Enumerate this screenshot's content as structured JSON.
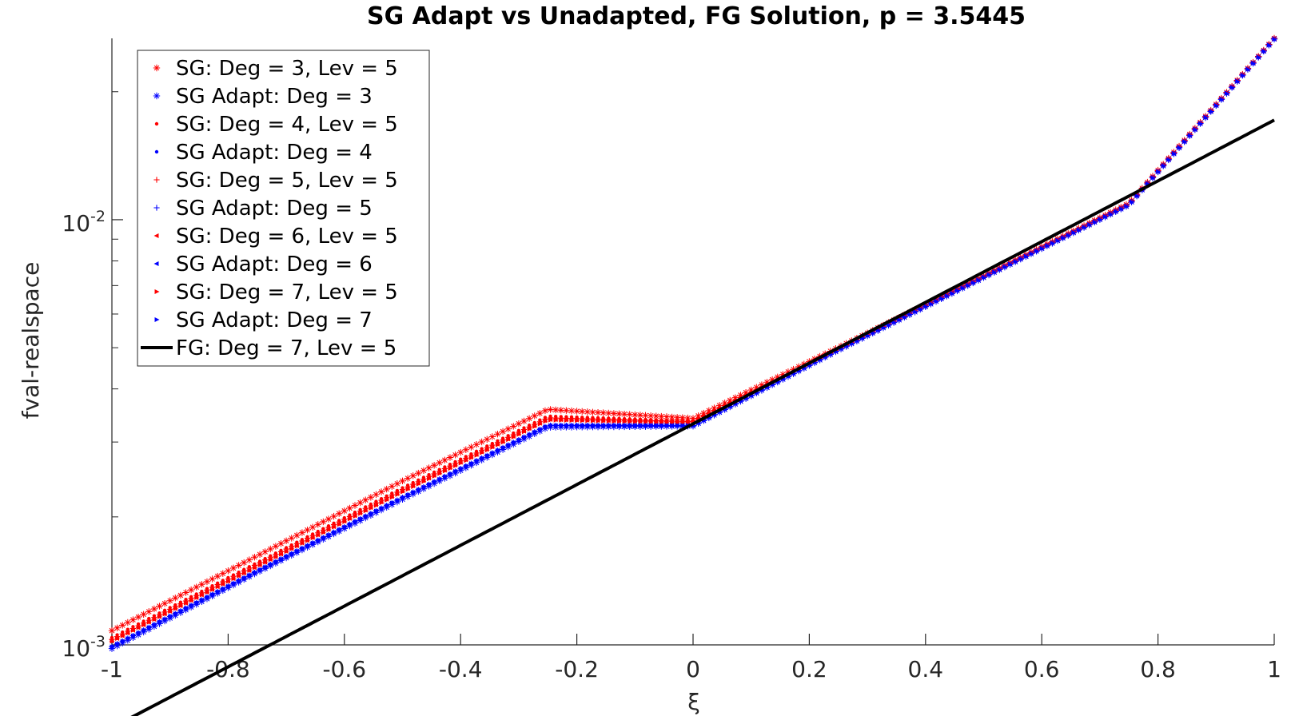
{
  "chart_data": {
    "type": "line",
    "title": "SG Adapt vs Unadapted, FG Solution, p = 3.5445",
    "xlabel": "ξ",
    "ylabel": "fval-realspace",
    "xlim": [
      -1,
      1
    ],
    "ylim": [
      0.001,
      0.0267
    ],
    "yscale": "log",
    "xticks": [
      -1,
      -0.8,
      -0.6,
      -0.4,
      -0.2,
      0,
      0.2,
      0.4,
      0.6,
      0.8,
      1
    ],
    "xtick_labels": [
      "-1",
      "-0.8",
      "-0.6",
      "-0.4",
      "-0.2",
      "0",
      "0.2",
      "0.4",
      "0.6",
      "0.8",
      "1"
    ],
    "yticks": [
      0.001,
      0.01
    ],
    "ytick_labels": [
      {
        "base": "10",
        "exp": "-3"
      },
      {
        "base": "10",
        "exp": "-2"
      }
    ],
    "grid": false,
    "legend_position": "top-left",
    "curve_model": {
      "form": "a*exp(b*x)",
      "a": 0.00331,
      "b": 1.6448
    },
    "series": [
      {
        "name": "SG: Deg = 3, Lev = 5",
        "color": "#ff0000",
        "marker": "asterisk",
        "x": [
          -1,
          -0.75,
          -0.5,
          -0.25,
          0,
          0.25,
          0.5,
          0.75,
          1
        ],
        "y": [
          0.00108,
          0.00162,
          0.00243,
          0.00358,
          0.00341,
          0.00501,
          0.00738,
          0.01093,
          0.0267
        ]
      },
      {
        "name": "SG Adapt: Deg = 3",
        "color": "#0000ff",
        "marker": "asterisk",
        "x": [
          -1,
          -0.75,
          -0.5,
          -0.25,
          0,
          0.25,
          0.5,
          0.75,
          1
        ],
        "y": [
          0.00098,
          0.00148,
          0.0022,
          0.00325,
          0.00327,
          0.00493,
          0.00731,
          0.01083,
          0.0266
        ]
      },
      {
        "name": "SG: Deg = 4, Lev = 5",
        "color": "#ff0000",
        "marker": "dot",
        "x": [
          -1,
          -0.75,
          -0.5,
          -0.25,
          0,
          0.25,
          0.5,
          0.75,
          1
        ],
        "y": [
          0.00104,
          0.00156,
          0.00234,
          0.00345,
          0.00336,
          0.00497,
          0.00735,
          0.01088,
          0.0267
        ]
      },
      {
        "name": "SG Adapt: Deg = 4",
        "color": "#0000ff",
        "marker": "dot",
        "x": [
          -1,
          -0.75,
          -0.5,
          -0.25,
          0,
          0.25,
          0.5,
          0.75,
          1
        ],
        "y": [
          0.00099,
          0.00149,
          0.00222,
          0.00328,
          0.00328,
          0.00494,
          0.00732,
          0.01084,
          0.0266
        ]
      },
      {
        "name": "SG: Deg = 5, Lev = 5",
        "color": "#ff0000",
        "marker": "plus",
        "x": [
          -1,
          -0.75,
          -0.5,
          -0.25,
          0,
          0.25,
          0.5,
          0.75,
          1
        ],
        "y": [
          0.00103,
          0.00155,
          0.00232,
          0.00342,
          0.00335,
          0.00497,
          0.00735,
          0.01088,
          0.0267
        ]
      },
      {
        "name": "SG Adapt: Deg = 5",
        "color": "#0000ff",
        "marker": "plus",
        "x": [
          -1,
          -0.75,
          -0.5,
          -0.25,
          0,
          0.25,
          0.5,
          0.75,
          1
        ],
        "y": [
          0.00099,
          0.00149,
          0.00222,
          0.00328,
          0.00328,
          0.00494,
          0.00732,
          0.01084,
          0.0266
        ]
      },
      {
        "name": "SG: Deg = 6, Lev = 5",
        "color": "#ff0000",
        "marker": "triangle-left",
        "x": [
          -1,
          -0.75,
          -0.5,
          -0.25,
          0,
          0.25,
          0.5,
          0.75,
          1
        ],
        "y": [
          0.00102,
          0.00153,
          0.0023,
          0.00339,
          0.00334,
          0.00496,
          0.00734,
          0.01087,
          0.0267
        ]
      },
      {
        "name": "SG Adapt: Deg = 6",
        "color": "#0000ff",
        "marker": "triangle-left",
        "x": [
          -1,
          -0.75,
          -0.5,
          -0.25,
          0,
          0.25,
          0.5,
          0.75,
          1
        ],
        "y": [
          0.00099,
          0.00149,
          0.00222,
          0.00328,
          0.00328,
          0.00494,
          0.00732,
          0.01084,
          0.0266
        ]
      },
      {
        "name": "SG: Deg = 7, Lev = 5",
        "color": "#ff0000",
        "marker": "triangle-right",
        "x": [
          -1,
          -0.75,
          -0.5,
          -0.25,
          0,
          0.25,
          0.5,
          0.75,
          1
        ],
        "y": [
          0.00102,
          0.00153,
          0.00229,
          0.00338,
          0.00333,
          0.00496,
          0.00734,
          0.01087,
          0.0267
        ]
      },
      {
        "name": "SG Adapt: Deg = 7",
        "color": "#0000ff",
        "marker": "triangle-right",
        "x": [
          -1,
          -0.75,
          -0.5,
          -0.25,
          0,
          0.25,
          0.5,
          0.75,
          1
        ],
        "y": [
          0.00099,
          0.00149,
          0.00222,
          0.00328,
          0.00328,
          0.00494,
          0.00732,
          0.01084,
          0.0266
        ]
      },
      {
        "name": "FG: Deg = 7, Lev = 5",
        "color": "#000000",
        "marker": "line",
        "x": [
          -1,
          -0.75,
          -0.5,
          -0.25,
          0,
          0.25,
          0.5,
          0.75,
          1
        ],
        "y": [
          0.000999,
          0.0015,
          0.00223,
          0.0033,
          0.00331,
          0.00495,
          0.00733,
          0.01085,
          0.0267
        ]
      }
    ]
  }
}
